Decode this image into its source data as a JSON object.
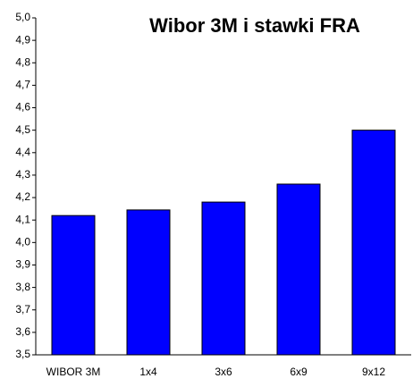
{
  "chart_data": {
    "type": "bar",
    "title": "Wibor 3M i stawki FRA",
    "categories": [
      "WIBOR 3M",
      "1x4",
      "3x6",
      "6x9",
      "9x12"
    ],
    "values": [
      4.12,
      4.145,
      4.18,
      4.26,
      4.5
    ],
    "color": "#0000ff",
    "ylim": [
      3.5,
      5.0
    ],
    "yticks": [
      {
        "value": 3.5,
        "label": "3,5"
      },
      {
        "value": 3.6,
        "label": "3,6"
      },
      {
        "value": 3.7,
        "label": "3,7"
      },
      {
        "value": 3.8,
        "label": "3,8"
      },
      {
        "value": 3.9,
        "label": "3,9"
      },
      {
        "value": 4.0,
        "label": "4,0"
      },
      {
        "value": 4.1,
        "label": "4,1"
      },
      {
        "value": 4.2,
        "label": "4,2"
      },
      {
        "value": 4.3,
        "label": "4,3"
      },
      {
        "value": 4.4,
        "label": "4,4"
      },
      {
        "value": 4.5,
        "label": "4,5"
      },
      {
        "value": 4.6,
        "label": "4,6"
      },
      {
        "value": 4.7,
        "label": "4,7"
      },
      {
        "value": 4.8,
        "label": "4,8"
      },
      {
        "value": 4.9,
        "label": "4,9"
      },
      {
        "value": 5.0,
        "label": "5,0"
      }
    ],
    "grid": false
  }
}
